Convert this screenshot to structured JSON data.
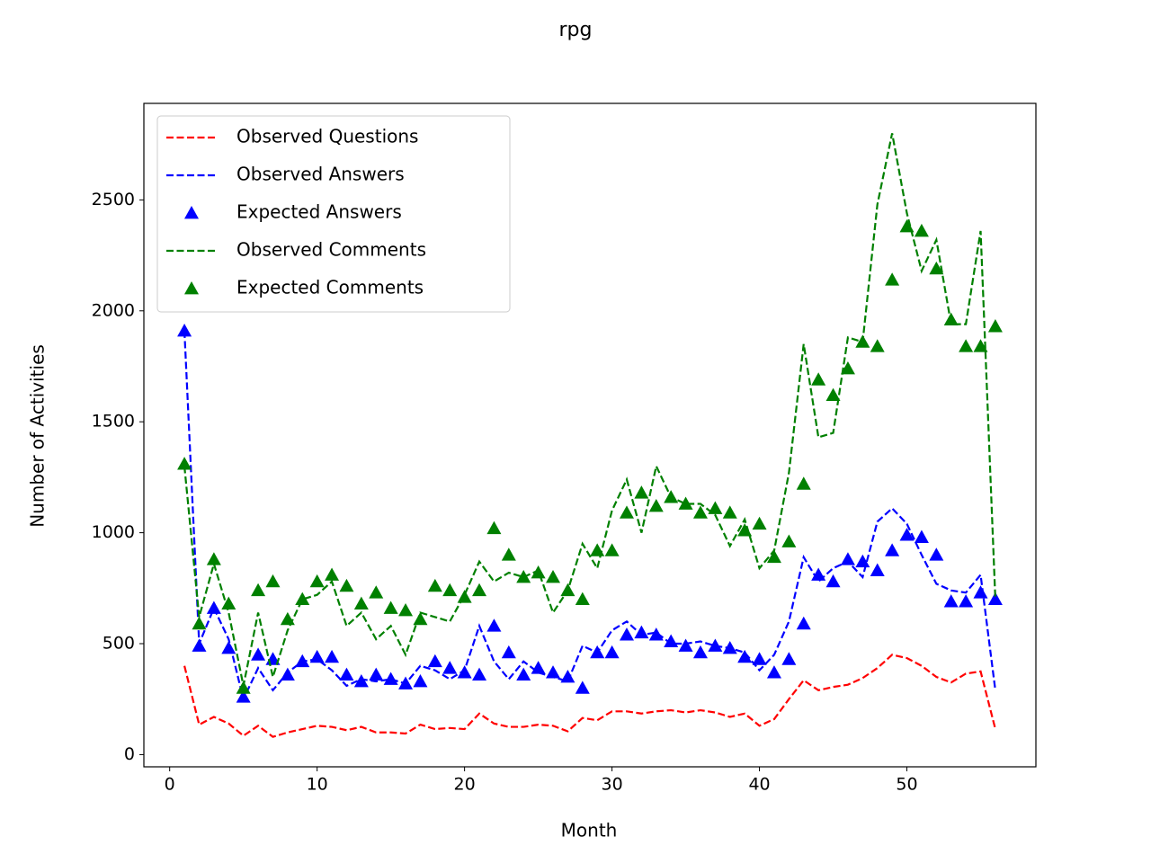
{
  "chart_data": {
    "type": "line",
    "title": "rpg",
    "x_label": "Month",
    "y_label": "Number of Activities",
    "x": [
      1,
      2,
      3,
      4,
      5,
      6,
      7,
      8,
      9,
      10,
      11,
      12,
      13,
      14,
      15,
      16,
      17,
      18,
      19,
      20,
      21,
      22,
      23,
      24,
      25,
      26,
      27,
      28,
      29,
      30,
      31,
      32,
      33,
      34,
      35,
      36,
      37,
      38,
      39,
      40,
      41,
      42,
      43,
      44,
      45,
      46,
      47,
      48,
      49,
      50,
      51,
      52,
      53,
      54,
      55,
      56
    ],
    "xlim": [
      -1.75,
      58.75
    ],
    "xticks": [
      0,
      10,
      20,
      30,
      40,
      50
    ],
    "ylim": [
      -55,
      2935
    ],
    "yticks": [
      0,
      500,
      1000,
      1500,
      2000,
      2500
    ],
    "legend": "upper left",
    "series": [
      {
        "name": "Observed Questions",
        "color": "#ff0000",
        "style": "dashed",
        "values": [
          400,
          135,
          170,
          140,
          85,
          130,
          80,
          100,
          115,
          130,
          125,
          110,
          125,
          100,
          100,
          95,
          135,
          115,
          120,
          115,
          185,
          140,
          125,
          125,
          135,
          130,
          105,
          165,
          155,
          195,
          195,
          185,
          195,
          200,
          190,
          200,
          190,
          170,
          185,
          130,
          160,
          250,
          335,
          290,
          305,
          315,
          345,
          390,
          450,
          435,
          400,
          350,
          325,
          365,
          375,
          115
        ]
      },
      {
        "name": "Observed Answers",
        "color": "#0000ff",
        "style": "dashed",
        "values": [
          1910,
          500,
          660,
          520,
          250,
          390,
          290,
          370,
          420,
          430,
          380,
          310,
          340,
          330,
          340,
          320,
          400,
          380,
          340,
          380,
          580,
          420,
          340,
          420,
          370,
          350,
          330,
          490,
          460,
          560,
          600,
          540,
          550,
          500,
          500,
          510,
          490,
          480,
          460,
          380,
          450,
          600,
          890,
          780,
          840,
          870,
          800,
          1050,
          1110,
          1040,
          900,
          770,
          740,
          730,
          810,
          290
        ]
      },
      {
        "name": "Expected Answers",
        "color": "#0000ff",
        "style": "triangle",
        "values": [
          1910,
          490,
          660,
          480,
          260,
          450,
          430,
          360,
          420,
          440,
          440,
          360,
          330,
          360,
          340,
          320,
          330,
          420,
          390,
          370,
          360,
          580,
          460,
          360,
          390,
          370,
          350,
          300,
          460,
          460,
          540,
          550,
          540,
          510,
          490,
          460,
          490,
          480,
          440,
          430,
          370,
          430,
          590,
          810,
          780,
          880,
          870,
          830,
          920,
          990,
          980,
          900,
          690,
          690,
          730,
          700
        ]
      },
      {
        "name": "Observed Comments",
        "color": "#008000",
        "style": "dashed",
        "values": [
          1300,
          620,
          860,
          640,
          310,
          640,
          350,
          560,
          700,
          720,
          780,
          580,
          640,
          520,
          580,
          450,
          640,
          620,
          600,
          720,
          870,
          780,
          820,
          800,
          830,
          640,
          740,
          950,
          840,
          1100,
          1240,
          1000,
          1300,
          1160,
          1130,
          1130,
          1080,
          940,
          1060,
          840,
          920,
          1270,
          1850,
          1430,
          1450,
          1880,
          1860,
          2480,
          2800,
          2440,
          2180,
          2320,
          1940,
          1940,
          2360,
          700
        ]
      },
      {
        "name": "Expected Comments",
        "color": "#008000",
        "style": "triangle",
        "values": [
          1310,
          590,
          880,
          680,
          300,
          740,
          780,
          610,
          700,
          780,
          810,
          760,
          680,
          730,
          660,
          650,
          610,
          760,
          740,
          710,
          740,
          1020,
          900,
          800,
          820,
          800,
          740,
          700,
          920,
          920,
          1090,
          1180,
          1120,
          1160,
          1130,
          1090,
          1110,
          1090,
          1010,
          1040,
          890,
          960,
          1220,
          1690,
          1620,
          1740,
          1860,
          1840,
          2140,
          2380,
          2360,
          2190,
          1960,
          1840,
          1840,
          1930
        ]
      }
    ]
  }
}
